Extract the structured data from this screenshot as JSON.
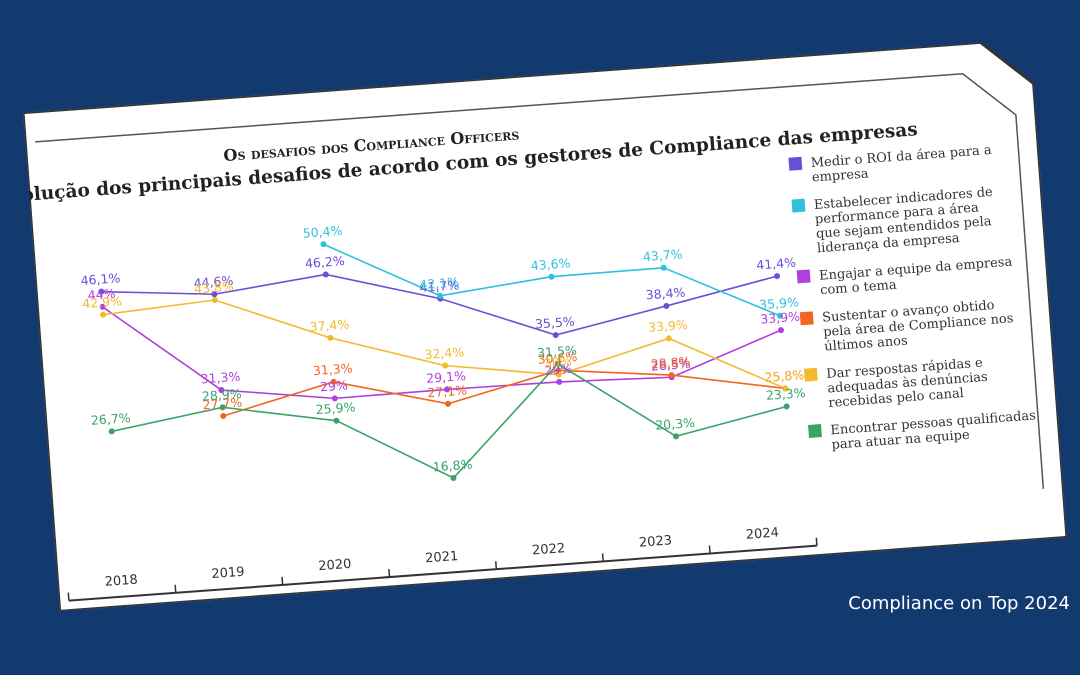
{
  "chart_data": {
    "type": "line",
    "title": "Os desafios dos Compliance Officers",
    "subtitle": "A evolução dos principais desafios de acordo com os gestores de Compliance das empresas",
    "categories": [
      "2018",
      "2019",
      "2020",
      "2021",
      "2022",
      "2023",
      "2024"
    ],
    "ylim": [
      10,
      55
    ],
    "grid": false,
    "legend_position": "right",
    "series": [
      {
        "name": "Medir o ROI da área para a empresa",
        "legend_lines": [
          "Medir o ROI da área para a",
          "empresa"
        ],
        "color": "#6a4fd8",
        "values": [
          46.1,
          44.6,
          46.2,
          41.7,
          35.5,
          38.4,
          41.4
        ],
        "labels": [
          "46,1%",
          "44,6%",
          "46,2%",
          "41,7%",
          "35,5%",
          "38,4%",
          "41,4%"
        ]
      },
      {
        "name": "Estabelecer indicadores de performance para a área que sejam entendidos pela liderança da empresa",
        "legend_lines": [
          "Estabelecer indicadores de",
          "performance para a área",
          "que sejam entendidos pela",
          "liderança da empresa"
        ],
        "color": "#2fc0e0",
        "values": [
          null,
          null,
          50.4,
          42.1,
          43.6,
          43.7,
          35.9
        ],
        "labels": [
          null,
          null,
          "50,4%",
          "42,1%",
          "43,6%",
          "43,7%",
          "35,9%"
        ]
      },
      {
        "name": "Engajar a equipe da empresa com o tema",
        "legend_lines": [
          "Engajar a equipe da empresa",
          "com o tema"
        ],
        "color": "#b03fe0",
        "values": [
          44,
          31.3,
          29,
          29.1,
          29,
          28.5,
          33.9
        ],
        "labels": [
          "44%",
          "31,3%",
          "29%",
          "29,1%",
          "29%",
          "28,5%",
          "33,9%"
        ]
      },
      {
        "name": "Sustentar o avanço obtido pela área de Compliance nos últimos anos",
        "legend_lines": [
          "Sustentar o avanço obtido",
          "pela área de Compliance nos",
          "últimos anos"
        ],
        "color": "#f0661e",
        "values": [
          null,
          27.7,
          31.3,
          27.1,
          30.6,
          28.8,
          25.8
        ],
        "labels": [
          null,
          "27,7%",
          "31,3%",
          "27,1%",
          "30,6%",
          "28,8%",
          "25,8%"
        ]
      },
      {
        "name": "Dar respostas rápidas e adequadas às denúncias recebidas pelo canal",
        "legend_lines": [
          "Dar respostas rápidas e",
          "adequadas às denúncias",
          "recebidas pelo canal"
        ],
        "color": "#f5b930",
        "values": [
          42.9,
          43.8,
          37.4,
          32.4,
          30,
          33.9,
          25.8
        ],
        "labels": [
          "42,9%",
          "43,8%",
          "37,4%",
          "32,4%",
          "30%",
          "33,9%",
          "25,8%"
        ]
      },
      {
        "name": "Encontrar pessoas qualificadas para atuar na equipe",
        "legend_lines": [
          "Encontrar pessoas qualificadas",
          "para atuar na equipe"
        ],
        "color": "#3aa36a",
        "values": [
          26.7,
          28.9,
          25.9,
          16.8,
          31.5,
          20.3,
          23.3
        ],
        "labels": [
          "26,7%",
          "28,9%",
          "25,9%",
          "16,8%",
          "31,5%",
          "20,3%",
          "23,3%"
        ]
      }
    ]
  },
  "credit": "Compliance on Top 2024"
}
